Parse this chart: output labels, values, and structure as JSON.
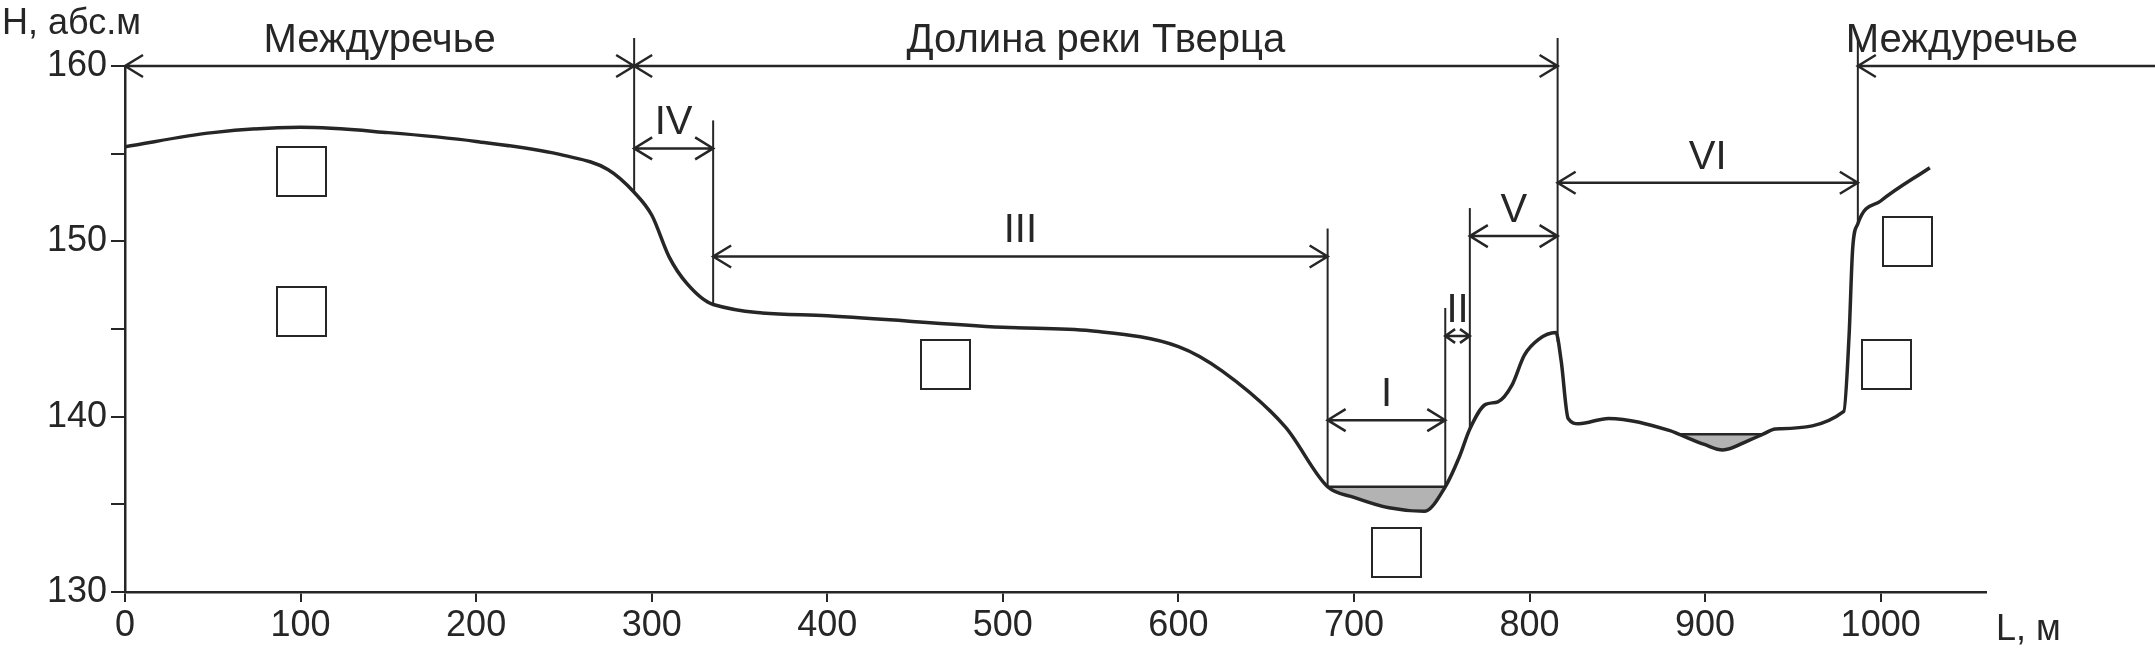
{
  "chart_data": {
    "type": "line",
    "xlabel": "L, м",
    "ylabel": "H, абс.м",
    "xlim": [
      0,
      1060
    ],
    "xticks": [
      0,
      100,
      200,
      300,
      400,
      500,
      600,
      700,
      800,
      900,
      1000
    ],
    "ylim": [
      130,
      160
    ],
    "yticks": [
      130,
      {
        "value": 135,
        "label": null
      },
      140,
      {
        "value": 145,
        "label": null
      },
      150,
      {
        "value": 155,
        "label": null
      },
      160
    ],
    "marker": "none",
    "series": [
      {
        "type": "line",
        "color": "#262626",
        "x": [
          0,
          50,
          100,
          150,
          200,
          250,
          275,
          290,
          300,
          310,
          320,
          335,
          400,
          500,
          550,
          600,
          625,
          661,
          685,
          700,
          720,
          740,
          752,
          760,
          766,
          775,
          782,
          790,
          797,
          805,
          815,
          818,
          822,
          828,
          845,
          880,
          885,
          900,
          910,
          925,
          933,
          940,
          979,
          982,
          984,
          987,
          1000,
          1028
        ],
        "values": [
          155.4,
          156.2,
          156.5,
          156.2,
          155.7,
          154.9,
          154.1,
          152.8,
          151.5,
          149.1,
          147.6,
          146.4,
          145.75,
          145.1,
          144.9,
          144.0,
          142.6,
          139.4,
          136,
          135.4,
          134.8,
          134.6,
          136,
          137.7,
          139.3,
          140.7,
          140.85,
          141.8,
          143.5,
          144.4,
          144.8,
          143.2,
          139.9,
          139.6,
          139.9,
          139.2,
          139,
          138.4,
          138.1,
          138.65,
          139,
          139.3,
          140.3,
          144.6,
          149.5,
          151.0,
          152.3,
          154.2
        ]
      },
      {
        "type": "area",
        "color": "#b3b3b3",
        "x": [
          685,
          700,
          720,
          740,
          752
        ],
        "values": [
          136,
          136,
          136,
          136,
          136
        ]
      },
      {
        "type": "area",
        "color": "#b3b3b3",
        "x": [
          885,
          900,
          910,
          920,
          933
        ],
        "values": [
          139,
          139,
          139,
          139,
          139
        ]
      }
    ],
    "ref_lines": [
      {
        "axis": "x",
        "value": 290
      },
      {
        "axis": "x",
        "value": 335
      },
      {
        "axis": "x",
        "value": 685
      },
      {
        "axis": "x",
        "value": 752
      },
      {
        "axis": "x",
        "value": 766
      },
      {
        "axis": "x",
        "value": 816
      },
      {
        "axis": "x",
        "value": 987
      }
    ],
    "annotations": [
      "Междуречье",
      "Долина реки Тверца",
      "Междуречье",
      {
        "text": "IV",
        "x": 335,
        "y": 155.3
      },
      "III",
      {
        "text": "I",
        "x": 752,
        "y": 139.8
      },
      {
        "text": "II",
        "x": 766,
        "y": 144.6
      },
      {
        "text": "V",
        "x": 816,
        "y": 150.3
      },
      "VI"
    ]
  }
}
